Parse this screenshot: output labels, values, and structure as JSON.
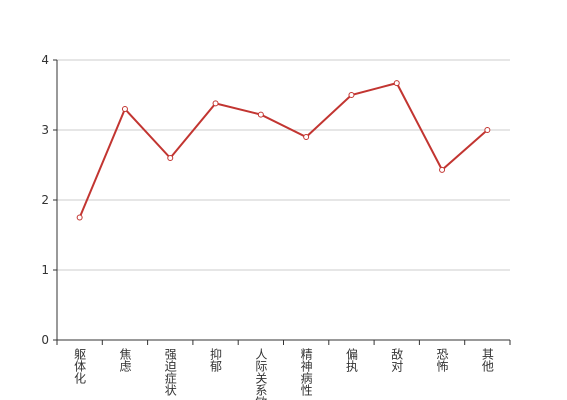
{
  "chart_data": {
    "type": "line",
    "categories": [
      "躯体化",
      "焦虑",
      "强迫症状",
      "抑郁",
      "人际关系敏感",
      "精神病性",
      "偏执",
      "敌对",
      "恐怖",
      "其他"
    ],
    "values": [
      1.75,
      3.3,
      2.6,
      3.38,
      3.22,
      2.9,
      3.5,
      3.67,
      2.43,
      3.0
    ],
    "color": "#c23531",
    "ylim": [
      0,
      4
    ],
    "yticks": [
      0,
      1,
      2,
      3,
      4
    ],
    "grid": true
  }
}
